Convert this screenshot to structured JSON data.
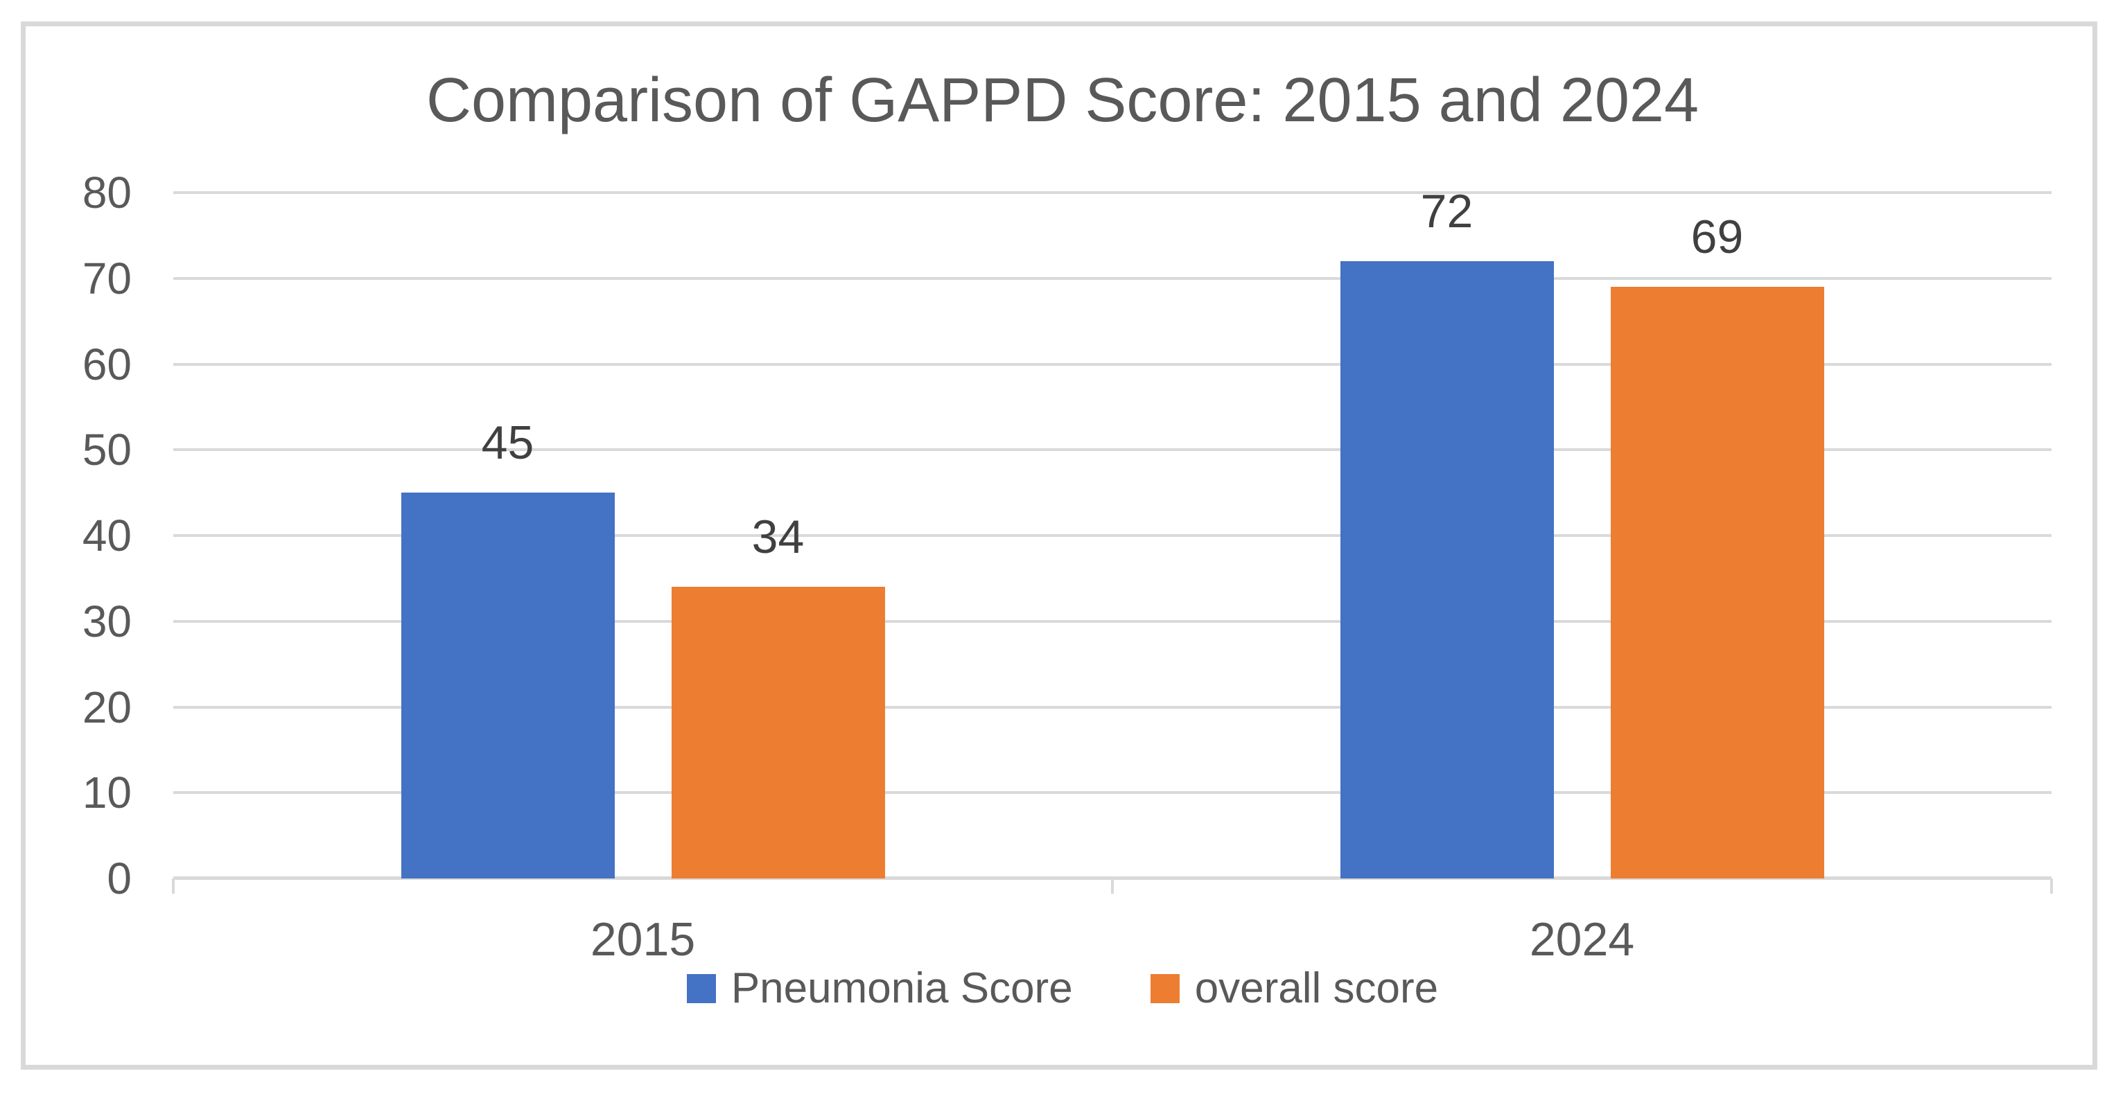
{
  "chart_data": {
    "type": "bar",
    "title": "Comparison of GAPPD Score: 2015 and 2024",
    "categories": [
      "2015",
      "2024"
    ],
    "series": [
      {
        "name": "Pneumonia Score",
        "color": "#4472C4",
        "values": [
          45,
          72
        ]
      },
      {
        "name": "overall score",
        "color": "#ED7D31",
        "values": [
          34,
          69
        ]
      }
    ],
    "xlabel": "",
    "ylabel": "",
    "ylim": [
      0,
      80
    ],
    "yticks": [
      0,
      10,
      20,
      30,
      40,
      50,
      60,
      70,
      80
    ],
    "grid": "horizontal",
    "legend_position": "bottom",
    "data_labels": [
      45,
      34,
      72,
      69
    ]
  },
  "colors": {
    "grid": "#d9d9d9",
    "frame_border": "#d9d9d9",
    "title_text": "#595959",
    "axis_text": "#595959",
    "data_label_text": "#404040",
    "background": "#ffffff"
  }
}
